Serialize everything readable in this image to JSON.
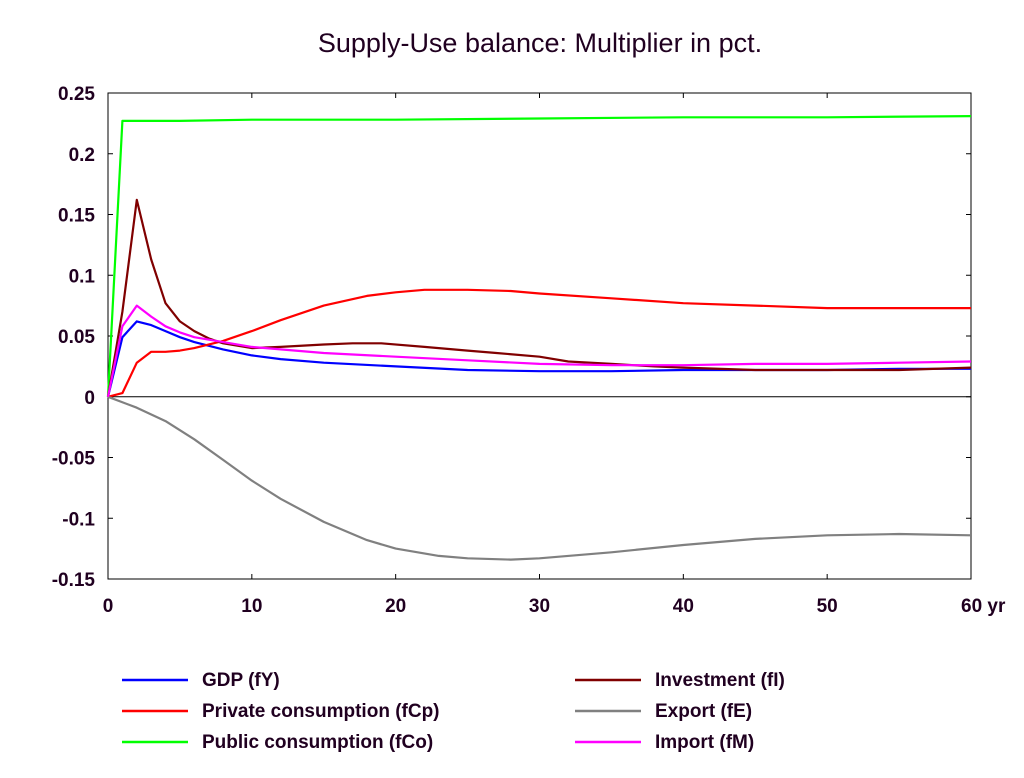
{
  "chart_data": {
    "type": "line",
    "title": "Supply-Use balance: Multiplier in pct.",
    "xlabel": "",
    "ylabel": "",
    "x_unit_label": "yr",
    "xlim": [
      0,
      60
    ],
    "ylim": [
      -0.15,
      0.25
    ],
    "x_ticks": [
      0,
      10,
      20,
      30,
      40,
      50,
      60
    ],
    "x_tick_labels": [
      "0",
      "10",
      "20",
      "30",
      "40",
      "50",
      "60 yr"
    ],
    "y_ticks": [
      0.25,
      0.2,
      0.15,
      0.1,
      0.05,
      0,
      -0.05,
      -0.1,
      -0.15
    ],
    "y_tick_labels": [
      "0.25",
      "0.2",
      "0.15",
      "0.1",
      "0.05",
      "0",
      "-0.05",
      "-0.1",
      "-0.15"
    ],
    "grid": false,
    "zero_line": true,
    "legend_position": "bottom",
    "series": [
      {
        "name": "GDP (fY)",
        "color": "#0000ff",
        "legend_col": 0,
        "points": [
          [
            0,
            0
          ],
          [
            1,
            0.049
          ],
          [
            2,
            0.062
          ],
          [
            3,
            0.059
          ],
          [
            4,
            0.054
          ],
          [
            5,
            0.049
          ],
          [
            6,
            0.045
          ],
          [
            8,
            0.039
          ],
          [
            10,
            0.034
          ],
          [
            12,
            0.031
          ],
          [
            15,
            0.028
          ],
          [
            20,
            0.025
          ],
          [
            25,
            0.022
          ],
          [
            30,
            0.021
          ],
          [
            35,
            0.021
          ],
          [
            40,
            0.022
          ],
          [
            45,
            0.022
          ],
          [
            50,
            0.022
          ],
          [
            55,
            0.023
          ],
          [
            60,
            0.023
          ]
        ]
      },
      {
        "name": "Private consumption (fCp)",
        "color": "#ff0000",
        "legend_col": 0,
        "points": [
          [
            0,
            0
          ],
          [
            1,
            0.003
          ],
          [
            2,
            0.028
          ],
          [
            3,
            0.037
          ],
          [
            4,
            0.037
          ],
          [
            5,
            0.038
          ],
          [
            6,
            0.04
          ],
          [
            8,
            0.046
          ],
          [
            10,
            0.054
          ],
          [
            12,
            0.063
          ],
          [
            15,
            0.075
          ],
          [
            18,
            0.083
          ],
          [
            20,
            0.086
          ],
          [
            22,
            0.088
          ],
          [
            25,
            0.088
          ],
          [
            28,
            0.087
          ],
          [
            30,
            0.085
          ],
          [
            35,
            0.081
          ],
          [
            40,
            0.077
          ],
          [
            45,
            0.075
          ],
          [
            50,
            0.073
          ],
          [
            55,
            0.073
          ],
          [
            60,
            0.073
          ]
        ]
      },
      {
        "name": "Public consumption (fCo)",
        "color": "#00ff00",
        "legend_col": 0,
        "points": [
          [
            0,
            0
          ],
          [
            1,
            0.227
          ],
          [
            5,
            0.227
          ],
          [
            10,
            0.228
          ],
          [
            20,
            0.228
          ],
          [
            30,
            0.229
          ],
          [
            40,
            0.23
          ],
          [
            50,
            0.23
          ],
          [
            60,
            0.231
          ]
        ]
      },
      {
        "name": "Investment (fI)",
        "color": "#800000",
        "legend_col": 1,
        "points": [
          [
            0,
            0
          ],
          [
            1,
            0.07
          ],
          [
            2,
            0.162
          ],
          [
            3,
            0.113
          ],
          [
            4,
            0.077
          ],
          [
            5,
            0.062
          ],
          [
            6,
            0.054
          ],
          [
            7,
            0.048
          ],
          [
            8,
            0.044
          ],
          [
            10,
            0.04
          ],
          [
            12,
            0.041
          ],
          [
            15,
            0.043
          ],
          [
            17,
            0.044
          ],
          [
            19,
            0.044
          ],
          [
            22,
            0.041
          ],
          [
            25,
            0.038
          ],
          [
            27,
            0.036
          ],
          [
            30,
            0.033
          ],
          [
            32,
            0.029
          ],
          [
            35,
            0.027
          ],
          [
            38,
            0.025
          ],
          [
            40,
            0.024
          ],
          [
            45,
            0.022
          ],
          [
            50,
            0.022
          ],
          [
            55,
            0.022
          ],
          [
            60,
            0.024
          ]
        ]
      },
      {
        "name": "Export (fE)",
        "color": "#808080",
        "legend_col": 1,
        "points": [
          [
            0,
            0
          ],
          [
            2,
            -0.009
          ],
          [
            4,
            -0.02
          ],
          [
            6,
            -0.035
          ],
          [
            8,
            -0.052
          ],
          [
            10,
            -0.069
          ],
          [
            12,
            -0.084
          ],
          [
            15,
            -0.103
          ],
          [
            18,
            -0.118
          ],
          [
            20,
            -0.125
          ],
          [
            23,
            -0.131
          ],
          [
            25,
            -0.133
          ],
          [
            28,
            -0.134
          ],
          [
            30,
            -0.133
          ],
          [
            35,
            -0.128
          ],
          [
            40,
            -0.122
          ],
          [
            45,
            -0.117
          ],
          [
            50,
            -0.114
          ],
          [
            55,
            -0.113
          ],
          [
            60,
            -0.114
          ]
        ]
      },
      {
        "name": "Import (fM)",
        "color": "#ff00ff",
        "legend_col": 1,
        "points": [
          [
            0,
            0
          ],
          [
            1,
            0.058
          ],
          [
            2,
            0.075
          ],
          [
            3,
            0.066
          ],
          [
            4,
            0.058
          ],
          [
            5,
            0.053
          ],
          [
            6,
            0.049
          ],
          [
            8,
            0.045
          ],
          [
            10,
            0.041
          ],
          [
            12,
            0.039
          ],
          [
            15,
            0.036
          ],
          [
            20,
            0.033
          ],
          [
            25,
            0.03
          ],
          [
            30,
            0.027
          ],
          [
            35,
            0.026
          ],
          [
            40,
            0.026
          ],
          [
            45,
            0.027
          ],
          [
            50,
            0.027
          ],
          [
            55,
            0.028
          ],
          [
            60,
            0.029
          ]
        ]
      }
    ]
  }
}
